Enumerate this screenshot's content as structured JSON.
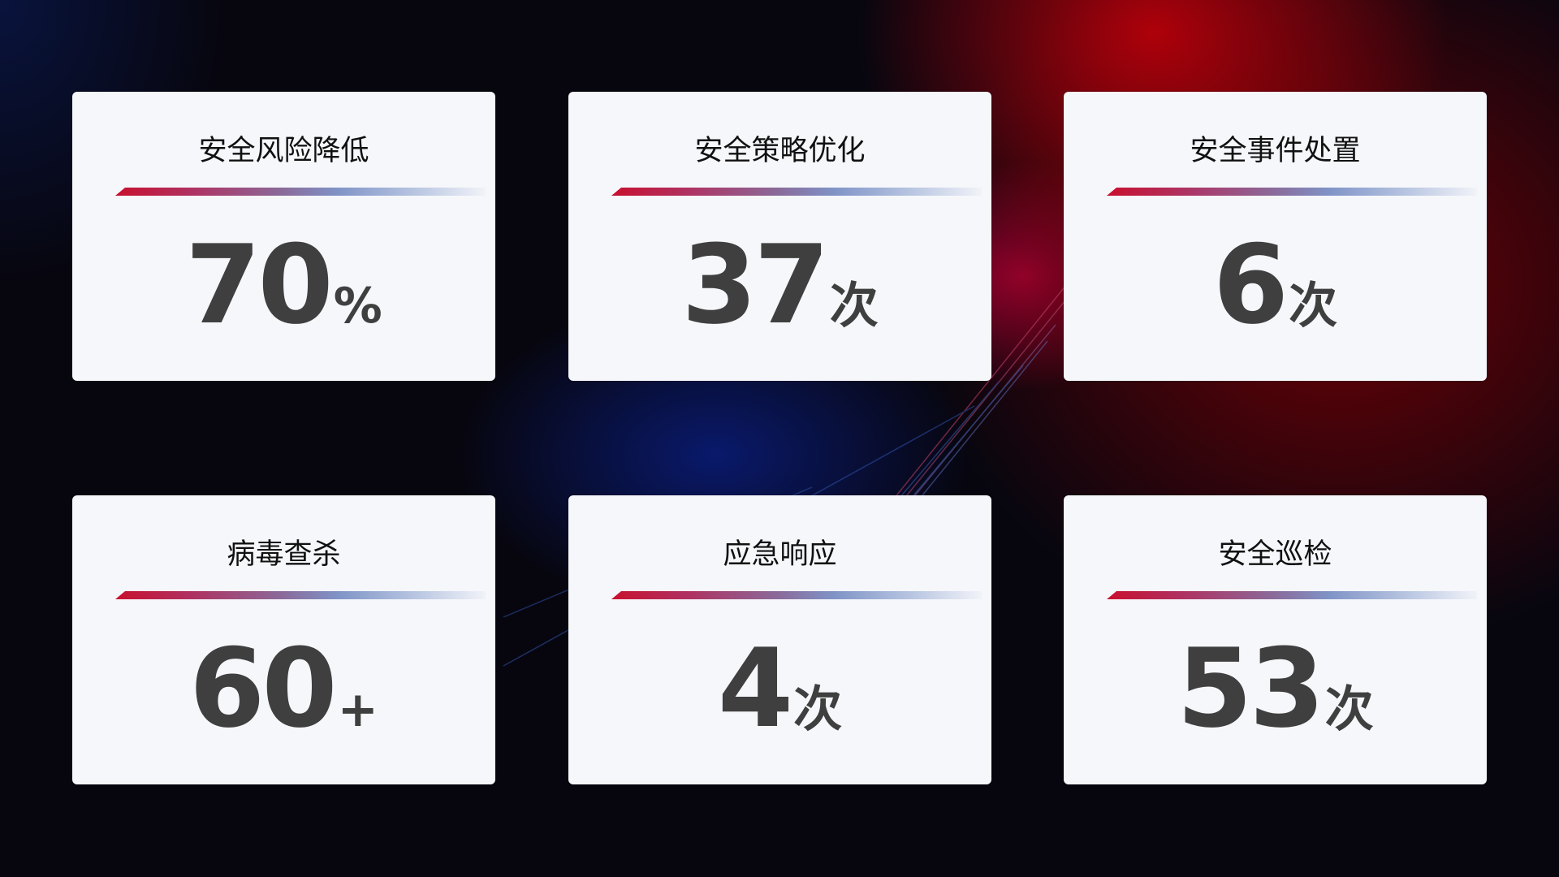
{
  "colors": {
    "accent_red": "#c8102e",
    "accent_blue": "#7f93c6",
    "card_bg": "#f6f7fb",
    "value_text": "#3f3f3f"
  },
  "cards": [
    {
      "title": "安全风险降低",
      "value": "70",
      "unit": "%"
    },
    {
      "title": "安全策略优化",
      "value": "37",
      "unit": "次"
    },
    {
      "title": "安全事件处置",
      "value": "6",
      "unit": "次"
    },
    {
      "title": "病毒查杀",
      "value": "60",
      "unit": "+"
    },
    {
      "title": "应急响应",
      "value": "4",
      "unit": "次"
    },
    {
      "title": "安全巡检",
      "value": "53",
      "unit": "次"
    }
  ]
}
